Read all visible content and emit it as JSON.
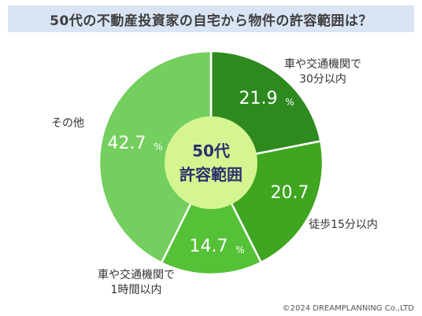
{
  "title": "50代の不動産投資家の自宅から物件の許容範囲は？",
  "center_label": [
    "50代",
    "許容範囲"
  ],
  "percent_unit": "%",
  "copyright": "©2024 DREAMPLANNING Co.,LTD",
  "colors": {
    "title_bg": "#d9e4f4",
    "center_circle": "#d5f591",
    "center_text": "#2d2d6e",
    "slice_value_text": "#ffffff",
    "label_text": "#333333"
  },
  "chart_data": {
    "type": "pie",
    "title": "50代の不動産投資家の自宅から物件の許容範囲は？",
    "donut": true,
    "start": "12 o'clock, clockwise",
    "slices": [
      {
        "label_lines": [
          "車や交通機関で",
          "30分以内"
        ],
        "value": 21.9,
        "color": "#2e8a1f"
      },
      {
        "label_lines": [
          "徒歩15分以内"
        ],
        "value": 20.7,
        "color": "#3ea61f"
      },
      {
        "label_lines": [
          "車や交通機関で",
          "1時間以内"
        ],
        "value": 14.7,
        "color": "#55c136"
      },
      {
        "label_lines": [
          "その他"
        ],
        "value": 42.7,
        "color": "#74cf5e"
      }
    ]
  }
}
